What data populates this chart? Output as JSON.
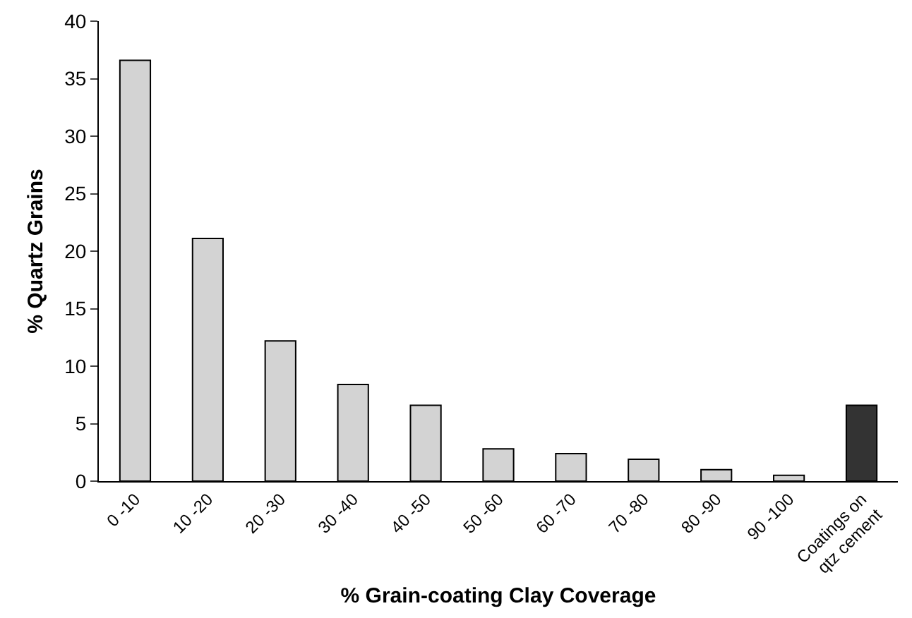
{
  "chart_data": {
    "type": "bar",
    "xlabel": "% Grain-coating Clay Coverage",
    "ylabel": "% Quartz Grains",
    "categories": [
      "0 -10",
      "10 -20",
      "20 -30",
      "30 -40",
      "40 -50",
      "50 -60",
      "60 -70",
      "70 -80",
      "80 -90",
      "90 -100",
      "Coatings on qtz cement"
    ],
    "values": [
      36.6,
      21.1,
      12.2,
      8.4,
      6.6,
      2.8,
      2.4,
      1.9,
      1.0,
      0.5,
      6.6
    ],
    "colors": [
      "#d3d3d3",
      "#d3d3d3",
      "#d3d3d3",
      "#d3d3d3",
      "#d3d3d3",
      "#d3d3d3",
      "#d3d3d3",
      "#d3d3d3",
      "#d3d3d3",
      "#d3d3d3",
      "#333333"
    ],
    "ylim": [
      0,
      40
    ],
    "yticks": [
      0,
      5,
      10,
      15,
      20,
      25,
      30,
      35,
      40
    ],
    "grid": false
  }
}
